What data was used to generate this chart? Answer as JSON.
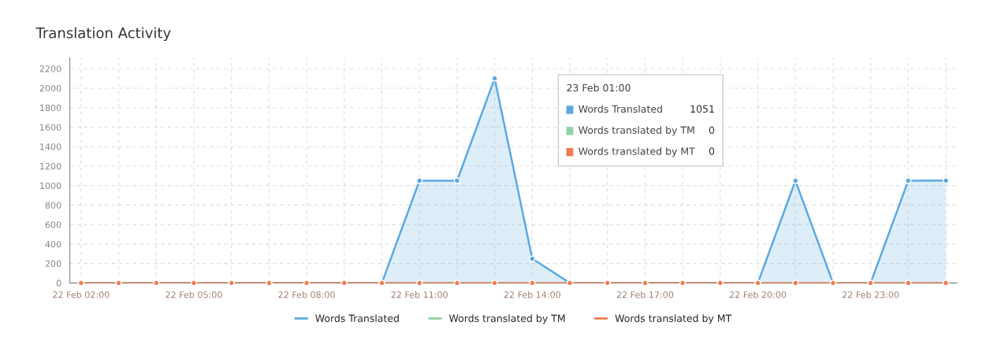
{
  "chart_data": {
    "type": "area",
    "title": "Translation Activity",
    "categories": [
      "22 Feb 02:00",
      null,
      null,
      "22 Feb 05:00",
      null,
      null,
      "22 Feb 08:00",
      null,
      null,
      "22 Feb 11:00",
      null,
      null,
      "22 Feb 14:00",
      null,
      null,
      "22 Feb 17:00",
      null,
      null,
      "22 Feb 20:00",
      null,
      null,
      "22 Feb 23:00",
      null,
      null
    ],
    "series": [
      {
        "name": "Words Translated",
        "color": "#5aa9e0",
        "values": [
          0,
          0,
          0,
          0,
          0,
          0,
          0,
          0,
          0,
          1050,
          1050,
          2100,
          250,
          0,
          0,
          0,
          0,
          0,
          0,
          1050,
          0,
          0,
          1050,
          1051
        ]
      },
      {
        "name": "Words translated by TM",
        "color": "#8fd3a3",
        "type": "line",
        "values": [
          null,
          null,
          null,
          null,
          null,
          null,
          null,
          null,
          null,
          null,
          null,
          null,
          null,
          null,
          null,
          null,
          null,
          null,
          null,
          null,
          null,
          null,
          null,
          null
        ]
      },
      {
        "name": "Words translated by MT",
        "color": "#ee7d52",
        "type": "line",
        "values": [
          0,
          0,
          0,
          0,
          0,
          0,
          0,
          0,
          0,
          0,
          0,
          0,
          0,
          0,
          0,
          0,
          0,
          0,
          0,
          0,
          0,
          0,
          0,
          0
        ]
      }
    ],
    "ylim": [
      0,
      2310
    ],
    "yticks": [
      0,
      200,
      400,
      600,
      800,
      1000,
      1200,
      1400,
      1600,
      1800,
      2000,
      2200
    ],
    "grid": true,
    "legend": "bottom",
    "marker": "circle",
    "line_style": "solid",
    "annotations": [
      "23 Feb 01:00",
      "Words Translated",
      "1051",
      "Words translated by TM",
      "0",
      "Words translated by MT",
      "0"
    ]
  }
}
